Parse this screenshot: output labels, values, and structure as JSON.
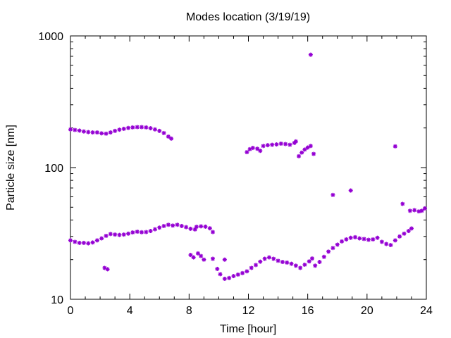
{
  "chart_data": {
    "type": "scatter",
    "title": "Modes location (3/19/19)",
    "xlabel": "Time [hour]",
    "ylabel": "Particle size [nm]",
    "xlim": [
      0,
      24
    ],
    "ylim": [
      10,
      1000
    ],
    "y_scale": "log",
    "x_ticks": [
      "0",
      "4",
      "8",
      "12",
      "16",
      "20",
      "24"
    ],
    "y_ticks": [
      "10",
      "100",
      "1000"
    ],
    "grid": false,
    "legend": "none",
    "marker_color": "#9400d3",
    "series": [
      {
        "points": [
          [
            0.0,
            195
          ],
          [
            0.3,
            193
          ],
          [
            0.6,
            191
          ],
          [
            0.9,
            188
          ],
          [
            1.2,
            186
          ],
          [
            1.5,
            185
          ],
          [
            1.8,
            185
          ],
          [
            2.1,
            182
          ],
          [
            2.4,
            181
          ],
          [
            2.7,
            185
          ],
          [
            3.0,
            190
          ],
          [
            3.3,
            194
          ],
          [
            3.6,
            197
          ],
          [
            3.9,
            200
          ],
          [
            4.2,
            202
          ],
          [
            4.5,
            203
          ],
          [
            4.8,
            203
          ],
          [
            5.1,
            202
          ],
          [
            5.4,
            199
          ],
          [
            5.7,
            195
          ],
          [
            6.0,
            190
          ],
          [
            6.3,
            183
          ],
          [
            6.6,
            172
          ],
          [
            6.8,
            166
          ],
          [
            0.0,
            28
          ],
          [
            0.3,
            27.3
          ],
          [
            0.6,
            26.8
          ],
          [
            0.9,
            26.8
          ],
          [
            1.2,
            26.6
          ],
          [
            1.5,
            27.0
          ],
          [
            1.8,
            28.0
          ],
          [
            2.1,
            29.0
          ],
          [
            2.4,
            30.3
          ],
          [
            2.7,
            31.3
          ],
          [
            3.0,
            31.0
          ],
          [
            3.3,
            30.8
          ],
          [
            3.6,
            31.0
          ],
          [
            3.9,
            31.5
          ],
          [
            4.2,
            32.2
          ],
          [
            4.5,
            32.6
          ],
          [
            4.8,
            32.3
          ],
          [
            5.1,
            32.4
          ],
          [
            5.4,
            33.0
          ],
          [
            5.7,
            34.0
          ],
          [
            6.0,
            35.0
          ],
          [
            6.3,
            36.0
          ],
          [
            6.6,
            36.8
          ],
          [
            6.9,
            36.3
          ],
          [
            7.2,
            36.8
          ],
          [
            7.5,
            36.0
          ],
          [
            7.8,
            35.3
          ],
          [
            8.1,
            34.3
          ],
          [
            8.4,
            33.9
          ],
          [
            8.5,
            35.5
          ],
          [
            8.8,
            35.8
          ],
          [
            9.1,
            35.6
          ],
          [
            9.4,
            34.6
          ],
          [
            9.6,
            32.4
          ],
          [
            2.3,
            17.3
          ],
          [
            2.5,
            16.9
          ],
          [
            8.1,
            21.7
          ],
          [
            8.3,
            20.8
          ],
          [
            8.6,
            22.3
          ],
          [
            8.8,
            21.3
          ],
          [
            9.0,
            20.0
          ],
          [
            9.6,
            20.3
          ],
          [
            9.9,
            17.0
          ],
          [
            10.1,
            15.5
          ],
          [
            10.4,
            14.3
          ],
          [
            10.7,
            14.5
          ],
          [
            11.0,
            15.0
          ],
          [
            11.3,
            15.4
          ],
          [
            11.6,
            15.8
          ],
          [
            11.9,
            16.3
          ],
          [
            12.2,
            17.3
          ],
          [
            12.5,
            18.2
          ],
          [
            12.8,
            19.3
          ],
          [
            13.1,
            20.3
          ],
          [
            13.4,
            20.8
          ],
          [
            13.7,
            20.3
          ],
          [
            14.0,
            19.6
          ],
          [
            14.3,
            19.2
          ],
          [
            14.6,
            19.0
          ],
          [
            14.9,
            18.6
          ],
          [
            15.2,
            18.0
          ],
          [
            15.5,
            17.3
          ],
          [
            15.8,
            18.3
          ],
          [
            16.1,
            19.4
          ],
          [
            16.3,
            20.4
          ],
          [
            16.5,
            18.0
          ],
          [
            16.8,
            19.2
          ],
          [
            17.1,
            21.0
          ],
          [
            17.4,
            23.0
          ],
          [
            17.7,
            24.5
          ],
          [
            18.0,
            26.0
          ],
          [
            18.3,
            27.5
          ],
          [
            18.6,
            28.5
          ],
          [
            18.9,
            29.3
          ],
          [
            19.2,
            29.6
          ],
          [
            19.5,
            29.0
          ],
          [
            19.8,
            28.7
          ],
          [
            20.1,
            28.3
          ],
          [
            20.4,
            28.5
          ],
          [
            20.7,
            29.3
          ],
          [
            21.0,
            27.3
          ],
          [
            21.3,
            26.3
          ],
          [
            21.6,
            25.8
          ],
          [
            21.9,
            28.0
          ],
          [
            22.2,
            30.0
          ],
          [
            22.5,
            31.5
          ],
          [
            22.8,
            33.0
          ],
          [
            23.0,
            34.5
          ],
          [
            10.4,
            20.0
          ],
          [
            11.9,
            131
          ],
          [
            12.1,
            138
          ],
          [
            12.3,
            141
          ],
          [
            12.6,
            139
          ],
          [
            12.8,
            134
          ],
          [
            13.0,
            146
          ],
          [
            13.3,
            148
          ],
          [
            13.6,
            149
          ],
          [
            13.9,
            150
          ],
          [
            14.2,
            152
          ],
          [
            14.5,
            151
          ],
          [
            14.8,
            149
          ],
          [
            15.1,
            154
          ],
          [
            15.2,
            158
          ],
          [
            15.4,
            122
          ],
          [
            15.6,
            130
          ],
          [
            15.8,
            137
          ],
          [
            16.0,
            142
          ],
          [
            16.2,
            146
          ],
          [
            16.4,
            127
          ],
          [
            16.2,
            720
          ],
          [
            17.7,
            62
          ],
          [
            18.9,
            67
          ],
          [
            21.9,
            145
          ],
          [
            22.4,
            53
          ],
          [
            22.9,
            47
          ],
          [
            23.2,
            47.5
          ],
          [
            23.5,
            46.5
          ],
          [
            23.7,
            47
          ],
          [
            23.9,
            49
          ]
        ]
      }
    ]
  }
}
